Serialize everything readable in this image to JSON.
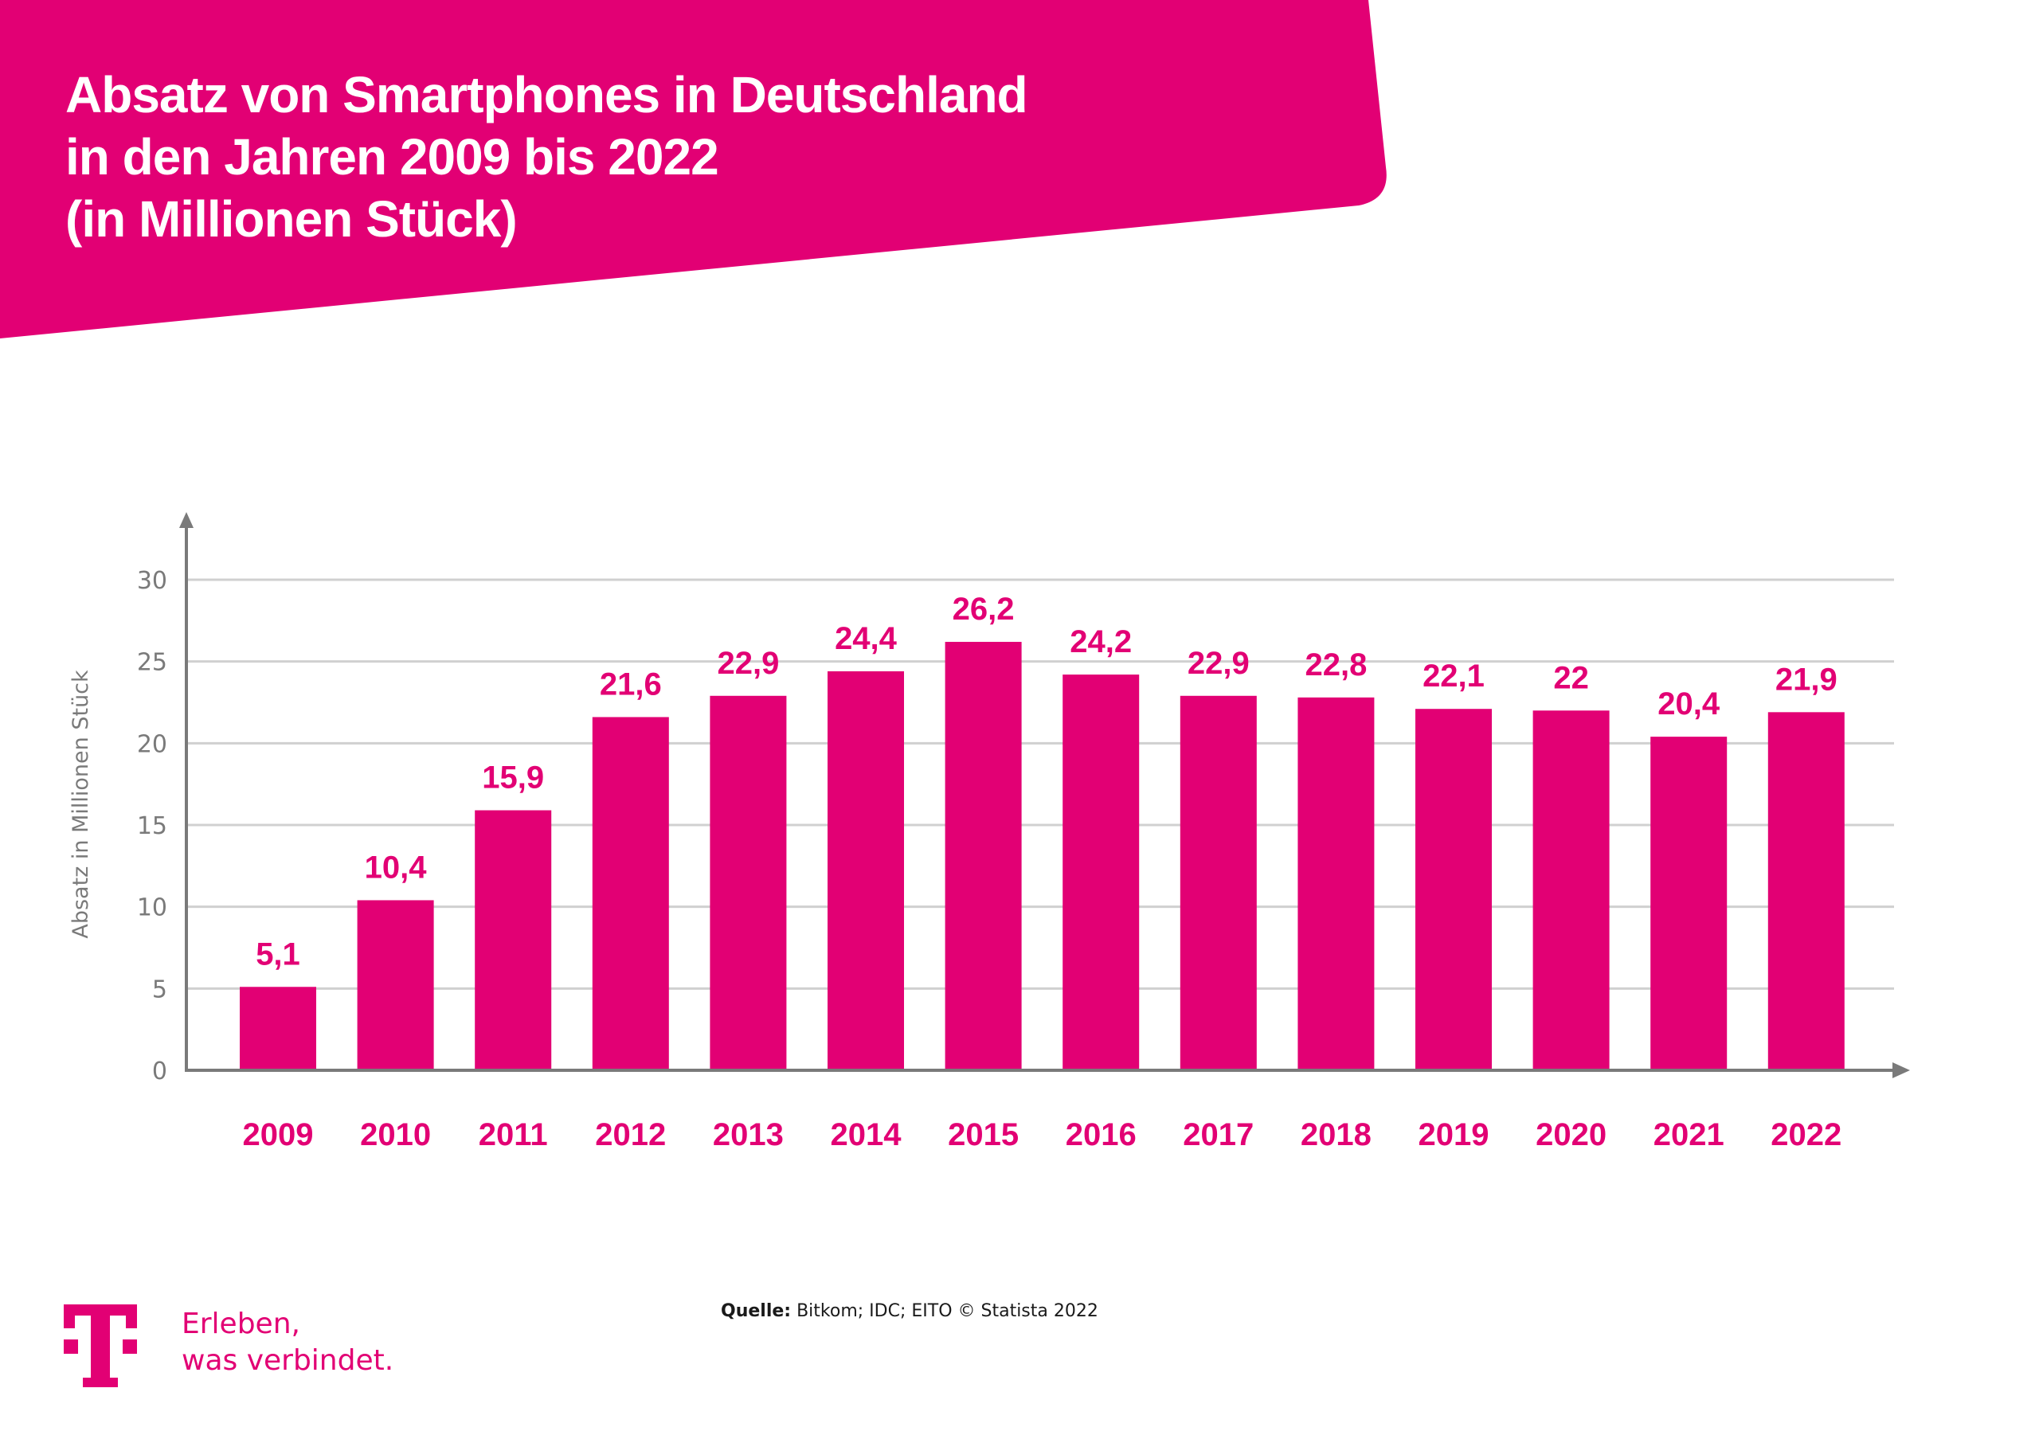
{
  "header": {
    "title_lines": [
      "Absatz von Smartphones in Deutschland",
      "in den Jahren 2009 bis 2022",
      "(in Millionen Stück)"
    ]
  },
  "colors": {
    "brand": "#e20074",
    "axis": "#7a7a7a",
    "grid": "#d0d0d0",
    "text_dark": "#1a1a1a"
  },
  "chart_data": {
    "type": "bar",
    "title": "Absatz von Smartphones in Deutschland in den Jahren 2009 bis 2022 (in Millionen Stück)",
    "xlabel": "",
    "ylabel": "Absatz in Millionen Stück",
    "categories": [
      "2009",
      "2010",
      "2011",
      "2012",
      "2013",
      "2014",
      "2015",
      "2016",
      "2017",
      "2018",
      "2019",
      "2020",
      "2021",
      "2022"
    ],
    "values": [
      5.1,
      10.4,
      15.9,
      21.6,
      22.9,
      24.4,
      26.2,
      24.2,
      22.9,
      22.8,
      22.1,
      22,
      20.4,
      21.9
    ],
    "value_labels": [
      "5,1",
      "10,4",
      "15,9",
      "21,6",
      "22,9",
      "24,4",
      "26,2",
      "24,2",
      "22,9",
      "22,8",
      "22,1",
      "22",
      "20,4",
      "21,9"
    ],
    "ylim": [
      0,
      30
    ],
    "yticks": [
      0,
      5,
      10,
      15,
      20,
      25,
      30
    ],
    "ytick_labels": [
      "0",
      "5",
      "10",
      "15",
      "20",
      "25",
      "30"
    ],
    "grid": true,
    "legend": "none"
  },
  "footer": {
    "slogan_line1": "Erleben,",
    "slogan_line2": "was verbindet.",
    "source_label": "Quelle:",
    "source_text": " Bitkom; IDC; EITO © Statista 2022",
    "logo_icon": "telekom-t-logo-icon"
  }
}
